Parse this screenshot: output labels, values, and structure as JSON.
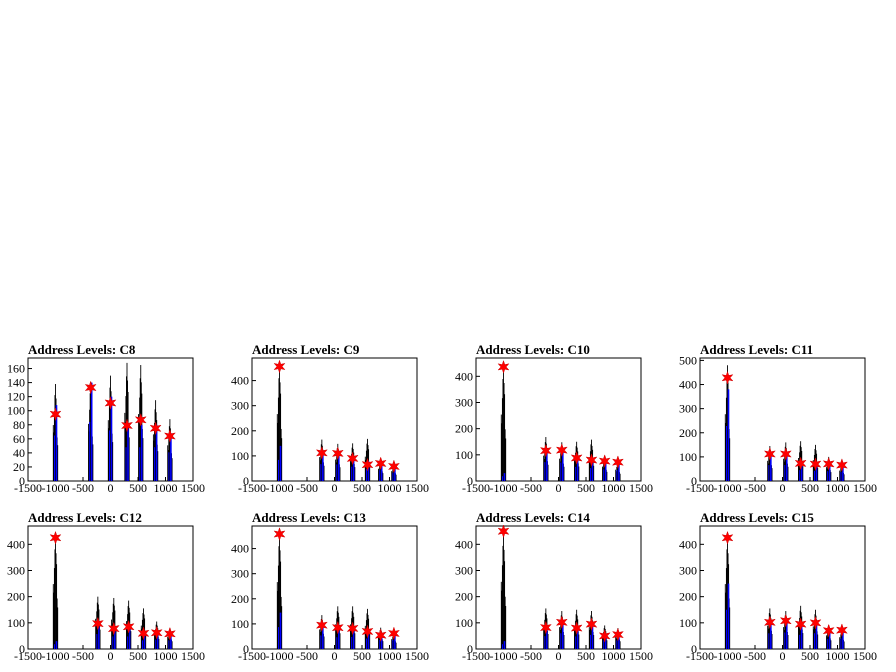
{
  "chart_data": [
    {
      "type": "bar",
      "title": "Address Levels: C8",
      "xlim": [
        -1500,
        1500
      ],
      "ylim": [
        0,
        175
      ],
      "yticks": [
        0,
        20,
        40,
        60,
        80,
        100,
        120,
        140,
        160
      ],
      "xticks": [
        -1500,
        -1000,
        -500,
        0,
        500,
        1000,
        1500
      ],
      "series": [
        {
          "style": "black-hist",
          "values": [
            [
              -1000,
              138
            ],
            [
              -360,
              141
            ],
            [
              0,
              150
            ],
            [
              300,
              168
            ],
            [
              550,
              165
            ],
            [
              820,
              115
            ],
            [
              1080,
              88
            ]
          ]
        },
        {
          "style": "blue-hist",
          "values": [
            [
              -1000,
              108
            ],
            [
              -360,
              140
            ],
            [
              0,
              120
            ],
            [
              300,
              80
            ],
            [
              550,
              80
            ],
            [
              820,
              80
            ],
            [
              1080,
              68
            ]
          ]
        },
        {
          "style": "red-star",
          "values": [
            [
              -1000,
              95
            ],
            [
              -360,
              133
            ],
            [
              0,
              111
            ],
            [
              300,
              79
            ],
            [
              550,
              87
            ],
            [
              820,
              75
            ],
            [
              1080,
              64
            ]
          ]
        }
      ]
    },
    {
      "type": "bar",
      "title": "Address Levels: C9",
      "xlim": [
        -1500,
        1500
      ],
      "ylim": [
        0,
        490
      ],
      "yticks": [
        0,
        100,
        200,
        300,
        400
      ],
      "xticks": [
        -1500,
        -1000,
        -500,
        0,
        500,
        1000,
        1500
      ],
      "series": [
        {
          "style": "black-hist",
          "values": [
            [
              -1000,
              462
            ],
            [
              -230,
              165
            ],
            [
              60,
              148
            ],
            [
              330,
              150
            ],
            [
              600,
              168
            ],
            [
              840,
              85
            ],
            [
              1080,
              68
            ]
          ]
        },
        {
          "style": "blue-hist",
          "values": [
            [
              -1000,
              140
            ],
            [
              -230,
              112
            ],
            [
              60,
              110
            ],
            [
              330,
              95
            ],
            [
              600,
              80
            ],
            [
              840,
              72
            ],
            [
              1080,
              55
            ]
          ]
        },
        {
          "style": "red-star",
          "values": [
            [
              -1000,
              456
            ],
            [
              -230,
              112
            ],
            [
              60,
              110
            ],
            [
              330,
              90
            ],
            [
              600,
              65
            ],
            [
              840,
              70
            ],
            [
              1080,
              58
            ]
          ]
        }
      ]
    },
    {
      "type": "bar",
      "title": "Address Levels: C10",
      "xlim": [
        -1500,
        1500
      ],
      "ylim": [
        0,
        470
      ],
      "yticks": [
        0,
        100,
        200,
        300,
        400
      ],
      "xticks": [
        -1500,
        -1000,
        -500,
        0,
        500,
        1000,
        1500
      ],
      "series": [
        {
          "style": "black-hist",
          "values": [
            [
              -1000,
              440
            ],
            [
              -230,
              168
            ],
            [
              60,
              148
            ],
            [
              330,
              150
            ],
            [
              600,
              158
            ],
            [
              840,
              95
            ],
            [
              1080,
              75
            ]
          ]
        },
        {
          "style": "blue-hist",
          "values": [
            [
              -1000,
              30
            ],
            [
              -230,
              120
            ],
            [
              60,
              118
            ],
            [
              330,
              90
            ],
            [
              600,
              82
            ],
            [
              840,
              75
            ],
            [
              1080,
              70
            ]
          ]
        },
        {
          "style": "red-star",
          "values": [
            [
              -1000,
              436
            ],
            [
              -230,
              116
            ],
            [
              60,
              118
            ],
            [
              330,
              88
            ],
            [
              600,
              80
            ],
            [
              840,
              76
            ],
            [
              1080,
              72
            ]
          ]
        }
      ]
    },
    {
      "type": "bar",
      "title": "Address Levels: C11",
      "xlim": [
        -1500,
        1500
      ],
      "ylim": [
        0,
        510
      ],
      "yticks": [
        0,
        100,
        200,
        300,
        400,
        500
      ],
      "xticks": [
        -1500,
        -1000,
        -500,
        0,
        500,
        1000,
        1500
      ],
      "series": [
        {
          "style": "black-hist",
          "values": [
            [
              -1000,
              480
            ],
            [
              -230,
              145
            ],
            [
              60,
              160
            ],
            [
              330,
              165
            ],
            [
              600,
              150
            ],
            [
              840,
              100
            ],
            [
              1080,
              75
            ]
          ]
        },
        {
          "style": "blue-hist",
          "values": [
            [
              -1000,
              380
            ],
            [
              -230,
              110
            ],
            [
              60,
              110
            ],
            [
              330,
              75
            ],
            [
              600,
              70
            ],
            [
              840,
              68
            ],
            [
              1080,
              62
            ]
          ]
        },
        {
          "style": "red-star",
          "values": [
            [
              -1000,
              428
            ],
            [
              -230,
              112
            ],
            [
              60,
              112
            ],
            [
              330,
              73
            ],
            [
              600,
              70
            ],
            [
              840,
              71
            ],
            [
              1080,
              66
            ]
          ]
        }
      ]
    },
    {
      "type": "bar",
      "title": "Address Levels: C12",
      "xlim": [
        -1500,
        1500
      ],
      "ylim": [
        0,
        470
      ],
      "yticks": [
        0,
        100,
        200,
        300,
        400
      ],
      "xticks": [
        -1500,
        -1000,
        -500,
        0,
        500,
        1000,
        1500
      ],
      "series": [
        {
          "style": "black-hist",
          "values": [
            [
              -1000,
              430
            ],
            [
              -230,
              200
            ],
            [
              60,
              195
            ],
            [
              330,
              185
            ],
            [
              600,
              155
            ],
            [
              840,
              105
            ],
            [
              1080,
              80
            ]
          ]
        },
        {
          "style": "blue-hist",
          "values": [
            [
              -1000,
              30
            ],
            [
              -230,
              95
            ],
            [
              60,
              80
            ],
            [
              330,
              80
            ],
            [
              600,
              55
            ],
            [
              840,
              60
            ],
            [
              1080,
              55
            ]
          ]
        },
        {
          "style": "red-star",
          "values": [
            [
              -1000,
              425
            ],
            [
              -230,
              97
            ],
            [
              60,
              78
            ],
            [
              330,
              85
            ],
            [
              600,
              60
            ],
            [
              840,
              62
            ],
            [
              1080,
              58
            ]
          ]
        }
      ]
    },
    {
      "type": "bar",
      "title": "Address Levels: C13",
      "xlim": [
        -1500,
        1500
      ],
      "ylim": [
        0,
        490
      ],
      "yticks": [
        0,
        100,
        200,
        300,
        400
      ],
      "xticks": [
        -1500,
        -1000,
        -500,
        0,
        500,
        1000,
        1500
      ],
      "series": [
        {
          "style": "black-hist",
          "values": [
            [
              -1000,
              462
            ],
            [
              -230,
              135
            ],
            [
              60,
              170
            ],
            [
              330,
              170
            ],
            [
              600,
              160
            ],
            [
              840,
              85
            ],
            [
              1080,
              68
            ]
          ]
        },
        {
          "style": "blue-hist",
          "values": [
            [
              -1000,
              145
            ],
            [
              -230,
              90
            ],
            [
              60,
              78
            ],
            [
              330,
              80
            ],
            [
              600,
              70
            ],
            [
              840,
              60
            ],
            [
              1080,
              60
            ]
          ]
        },
        {
          "style": "red-star",
          "values": [
            [
              -1000,
              458
            ],
            [
              -230,
              95
            ],
            [
              60,
              85
            ],
            [
              330,
              82
            ],
            [
              600,
              70
            ],
            [
              840,
              55
            ],
            [
              1080,
              62
            ]
          ]
        }
      ]
    },
    {
      "type": "bar",
      "title": "Address Levels: C14",
      "xlim": [
        -1500,
        1500
      ],
      "ylim": [
        0,
        470
      ],
      "yticks": [
        0,
        100,
        200,
        300,
        400
      ],
      "xticks": [
        -1500,
        -1000,
        -500,
        0,
        500,
        1000,
        1500
      ],
      "series": [
        {
          "style": "black-hist",
          "values": [
            [
              -1000,
              445
            ],
            [
              -230,
              155
            ],
            [
              60,
              145
            ],
            [
              330,
              150
            ],
            [
              600,
              145
            ],
            [
              840,
              90
            ],
            [
              1080,
              80
            ]
          ]
        },
        {
          "style": "blue-hist",
          "values": [
            [
              -1000,
              30
            ],
            [
              -230,
              82
            ],
            [
              60,
              100
            ],
            [
              330,
              80
            ],
            [
              600,
              90
            ],
            [
              840,
              55
            ],
            [
              1080,
              55
            ]
          ]
        },
        {
          "style": "red-star",
          "values": [
            [
              -1000,
              450
            ],
            [
              -230,
              82
            ],
            [
              60,
              102
            ],
            [
              330,
              80
            ],
            [
              600,
              95
            ],
            [
              840,
              50
            ],
            [
              1080,
              55
            ]
          ]
        }
      ]
    },
    {
      "type": "bar",
      "title": "Address Levels: C15",
      "xlim": [
        -1500,
        1500
      ],
      "ylim": [
        0,
        470
      ],
      "yticks": [
        0,
        100,
        200,
        300,
        400
      ],
      "xticks": [
        -1500,
        -1000,
        -500,
        0,
        500,
        1000,
        1500
      ],
      "series": [
        {
          "style": "black-hist",
          "values": [
            [
              -1000,
              430
            ],
            [
              -230,
              155
            ],
            [
              60,
              145
            ],
            [
              330,
              165
            ],
            [
              600,
              150
            ],
            [
              840,
              90
            ],
            [
              1080,
              78
            ]
          ]
        },
        {
          "style": "blue-hist",
          "values": [
            [
              -1000,
              250
            ],
            [
              -230,
              100
            ],
            [
              60,
              105
            ],
            [
              330,
              90
            ],
            [
              600,
              100
            ],
            [
              840,
              65
            ],
            [
              1080,
              68
            ]
          ]
        },
        {
          "style": "red-star",
          "values": [
            [
              -1000,
              425
            ],
            [
              -230,
              102
            ],
            [
              60,
              108
            ],
            [
              330,
              95
            ],
            [
              600,
              100
            ],
            [
              840,
              70
            ],
            [
              1080,
              72
            ]
          ]
        }
      ]
    }
  ]
}
